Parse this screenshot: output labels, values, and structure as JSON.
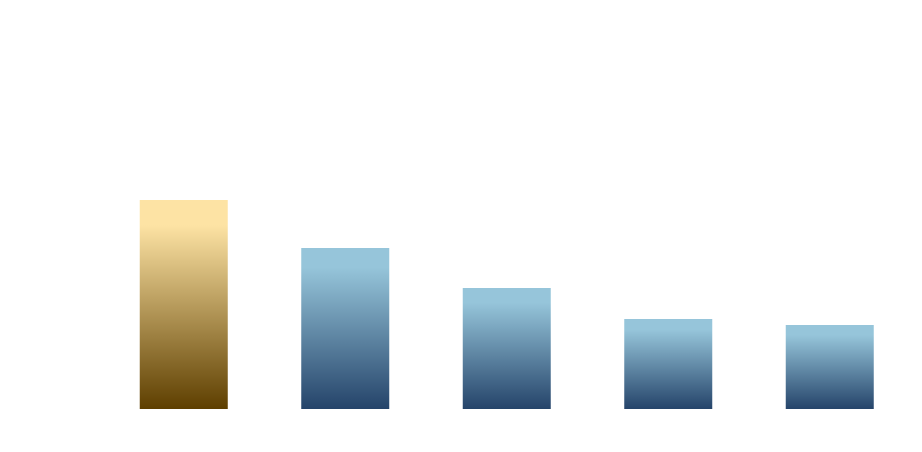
{
  "chart_data": {
    "type": "bar",
    "categories": [
      null,
      null,
      null,
      null,
      null
    ],
    "values": [
      209,
      161,
      121,
      90,
      84
    ],
    "colors": [
      [
        "#fde3a4",
        "#5e3f00"
      ],
      [
        "#96c5da",
        "#25446a"
      ],
      [
        "#96c5da",
        "#25446a"
      ],
      [
        "#96c5da",
        "#25446a"
      ],
      [
        "#96c5da",
        "#25446a"
      ]
    ],
    "ylim": [
      0,
      409
    ]
  }
}
